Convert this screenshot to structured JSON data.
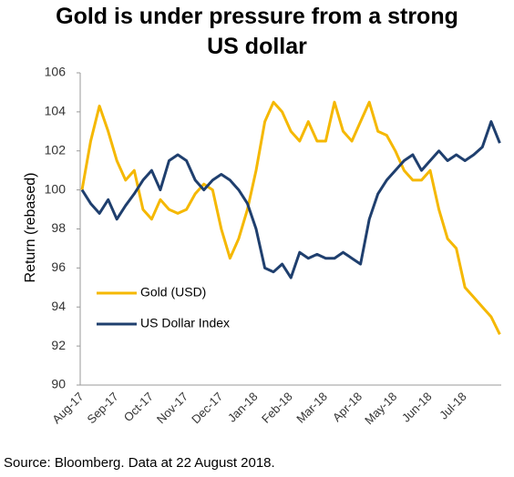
{
  "chart_data": {
    "type": "line",
    "title": "Gold is under pressure from a strong US dollar",
    "ylabel": "Return (rebased)",
    "source": "Source: Bloomberg. Data at 22 August 2018.",
    "categories": [
      "Aug-17",
      null,
      null,
      null,
      "Sep-17",
      null,
      null,
      null,
      "Oct-17",
      null,
      null,
      null,
      "Nov-17",
      null,
      null,
      null,
      "Dec-17",
      null,
      null,
      null,
      "Jan-18",
      null,
      null,
      null,
      "Feb-18",
      null,
      null,
      null,
      "Mar-18",
      null,
      null,
      null,
      "Apr-18",
      null,
      null,
      null,
      "May-18",
      null,
      null,
      null,
      "Jun-18",
      null,
      null,
      null,
      "Jul-18",
      null,
      null,
      null,
      null
    ],
    "series": [
      {
        "name": "Gold (USD)",
        "color": "#f5b800",
        "values": [
          100,
          102.5,
          104.3,
          103,
          101.5,
          100.5,
          101,
          99,
          98.5,
          99.5,
          99,
          98.8,
          99,
          99.8,
          100.3,
          100,
          98,
          96.5,
          97.5,
          99,
          101,
          103.5,
          104.5,
          104,
          103,
          102.5,
          103.5,
          102.5,
          102.5,
          104.5,
          103,
          102.5,
          103.5,
          104.5,
          103,
          102.8,
          102,
          101,
          100.5,
          100.5,
          101,
          99,
          97.5,
          97,
          95,
          94.5,
          94,
          93.5,
          92.6
        ]
      },
      {
        "name": "US Dollar Index",
        "color": "#1f3f6e",
        "values": [
          100,
          99.3,
          98.8,
          99.5,
          98.5,
          99.2,
          99.8,
          100.5,
          101,
          100,
          101.5,
          101.8,
          101.5,
          100.5,
          100,
          100.5,
          100.8,
          100.5,
          100,
          99.3,
          98,
          96,
          95.8,
          96.2,
          95.5,
          96.8,
          96.5,
          96.7,
          96.5,
          96.5,
          96.8,
          96.5,
          96.2,
          98.5,
          99.8,
          100.5,
          101,
          101.5,
          101.8,
          101,
          101.5,
          102,
          101.5,
          101.8,
          101.5,
          101.8,
          102.2,
          103.5,
          102.4
        ]
      }
    ],
    "ylim": [
      90,
      106
    ],
    "yticks": [
      90,
      92,
      94,
      96,
      98,
      100,
      102,
      104,
      106
    ],
    "grid": false
  }
}
